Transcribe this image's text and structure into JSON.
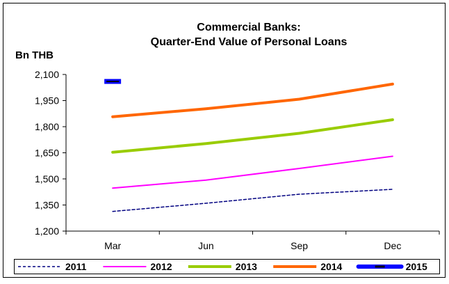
{
  "chart_data": {
    "type": "line",
    "title": "Commercial Banks:",
    "subtitle": "Quarter-End Value of Personal Loans",
    "ylabel": "Bn THB",
    "xlabel": "",
    "categories": [
      "Mar",
      "Jun",
      "Sep",
      "Dec"
    ],
    "ylim": [
      1200,
      2100
    ],
    "yticks": [
      1200,
      1350,
      1500,
      1650,
      1800,
      1950,
      2100
    ],
    "ytick_labels": [
      "1,200",
      "1,350",
      "1,500",
      "1,650",
      "1,800",
      "1,950",
      "2,100"
    ],
    "grid": false,
    "legend_position": "bottom",
    "series": [
      {
        "name": "2011",
        "values": [
          1313,
          1360,
          1412,
          1440
        ],
        "color": "#000080",
        "style": "dashed"
      },
      {
        "name": "2012",
        "values": [
          1447,
          1493,
          1560,
          1630
        ],
        "color": "#ff00ff",
        "style": "solid"
      },
      {
        "name": "2013",
        "values": [
          1653,
          1703,
          1762,
          1840
        ],
        "color": "#99cc00",
        "style": "solid"
      },
      {
        "name": "2014",
        "values": [
          1857,
          1903,
          1958,
          2045
        ],
        "color": "#ff6600",
        "style": "solid"
      },
      {
        "name": "2015",
        "values": [
          2060,
          null,
          null,
          null
        ],
        "color": "#0000ff",
        "style": "marker"
      }
    ]
  }
}
